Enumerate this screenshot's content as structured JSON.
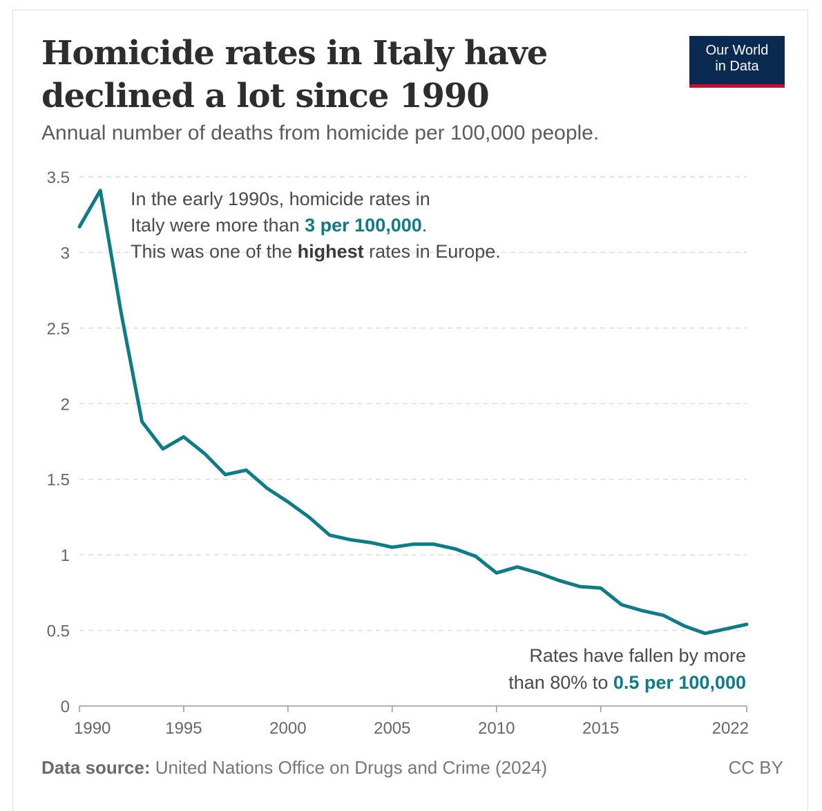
{
  "header": {
    "title": "Homicide rates in Italy have declined a lot since 1990",
    "subtitle": "Annual number of deaths from homicide per 100,000 people."
  },
  "logo": {
    "line1": "Our World",
    "line2": "in Data"
  },
  "colors": {
    "series": "#0e7c86",
    "highlight": "#0e7c86",
    "logo_bg": "#0b2a52",
    "logo_accent": "#c8102e"
  },
  "annotations": {
    "top": {
      "line1": "In the early 1990s, homicide rates in",
      "line2_pre": "Italy were more than ",
      "line2_hl": "3 per 100,000",
      "line2_post": ".",
      "line3_pre": "This was one of the ",
      "line3_bold": "highest",
      "line3_post": " rates in Europe."
    },
    "bottom": {
      "line1": "Rates have fallen by more",
      "line2_pre": "than 80% to ",
      "line2_hl": "0.5 per 100,000"
    }
  },
  "footer": {
    "source_label": "Data source:",
    "source_text": " United Nations Office on Drugs and Crime (2024)",
    "license": "CC BY"
  },
  "chart_data": {
    "type": "line",
    "title": "Homicide rates in Italy have declined a lot since 1990",
    "subtitle": "Annual number of deaths from homicide per 100,000 people.",
    "xlabel": "",
    "ylabel": "",
    "xlim": [
      1990,
      2022
    ],
    "ylim": [
      0,
      3.5
    ],
    "grid": "horizontal dashed",
    "y_ticks": [
      0,
      0.5,
      1,
      1.5,
      2,
      2.5,
      3,
      3.5
    ],
    "y_tick_labels": [
      "0",
      "0.5",
      "1",
      "1.5",
      "2",
      "2.5",
      "3",
      "3.5"
    ],
    "x_ticks": [
      1990,
      1995,
      2000,
      2005,
      2010,
      2015,
      2022
    ],
    "x_tick_labels": [
      "1990",
      "1995",
      "2000",
      "2005",
      "2010",
      "2015",
      "2022"
    ],
    "series": [
      {
        "name": "Italy",
        "x": [
          1990,
          1991,
          1992,
          1993,
          1994,
          1995,
          1996,
          1997,
          1998,
          1999,
          2000,
          2001,
          2002,
          2003,
          2004,
          2005,
          2006,
          2007,
          2008,
          2009,
          2010,
          2011,
          2012,
          2013,
          2014,
          2015,
          2016,
          2017,
          2018,
          2019,
          2020,
          2021,
          2022
        ],
        "values": [
          3.17,
          3.41,
          2.6,
          1.88,
          1.7,
          1.78,
          1.67,
          1.53,
          1.56,
          1.44,
          1.35,
          1.25,
          1.13,
          1.1,
          1.08,
          1.05,
          1.07,
          1.07,
          1.04,
          0.99,
          0.88,
          0.92,
          0.88,
          0.83,
          0.79,
          0.78,
          0.67,
          0.63,
          0.6,
          0.53,
          0.48,
          0.51,
          0.54
        ]
      }
    ]
  }
}
